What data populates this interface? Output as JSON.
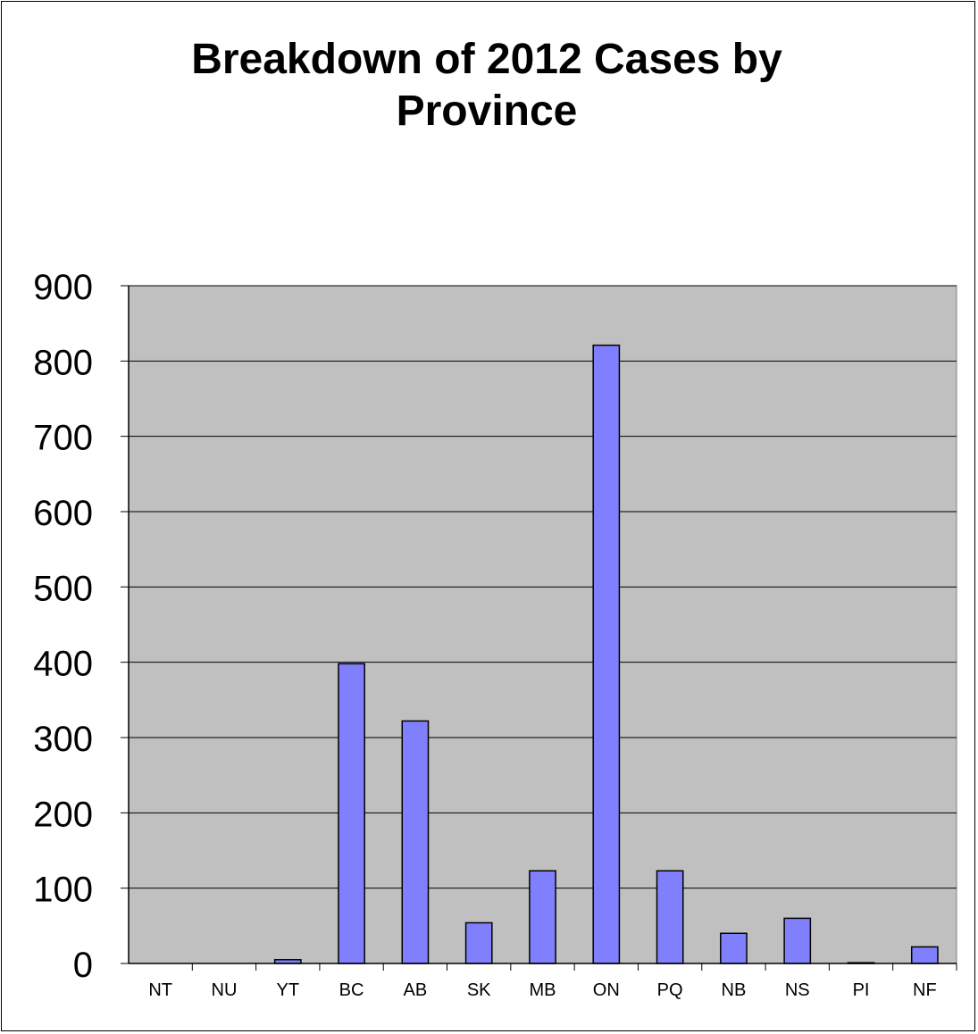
{
  "chart_data": {
    "type": "bar",
    "title": "Breakdown of 2012 Cases by\nProvince",
    "xlabel": "",
    "ylabel": "",
    "categories": [
      "NT",
      "NU",
      "YT",
      "BC",
      "AB",
      "SK",
      "MB",
      "ON",
      "PQ",
      "NB",
      "NS",
      "PI",
      "NF"
    ],
    "values": [
      0,
      0,
      5,
      398,
      322,
      54,
      123,
      821,
      123,
      40,
      60,
      1,
      22
    ],
    "ylim": [
      0,
      900
    ],
    "yticks": [
      "0",
      "100",
      "200",
      "300",
      "400",
      "500",
      "600",
      "700",
      "800",
      "900"
    ],
    "grid": true,
    "legend": "none",
    "colors": {
      "bar_fill": "#8080ff",
      "plot_background": "#c0c0c0",
      "gridline": "#000000"
    }
  }
}
